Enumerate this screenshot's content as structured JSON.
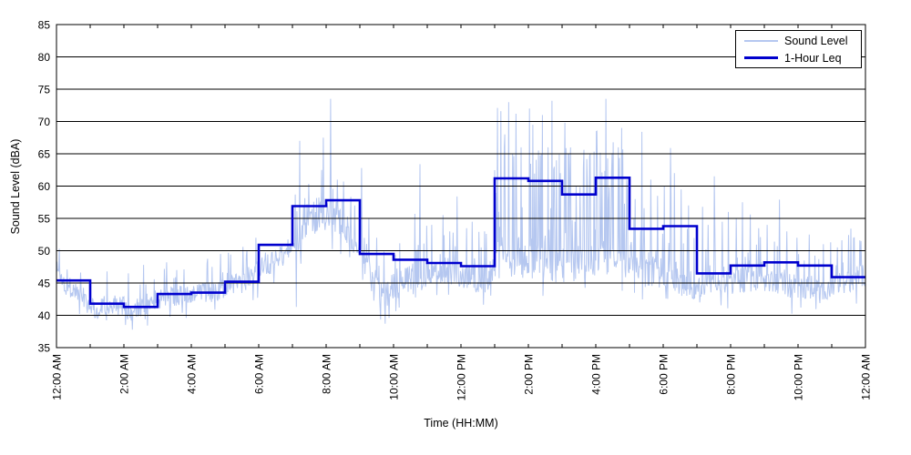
{
  "chart_data": {
    "type": "line",
    "title": "",
    "xlabel": "Time (HH:MM)",
    "ylabel": "Sound Level (dBA)",
    "ylim": [
      35,
      85
    ],
    "ytick_values": [
      35,
      40,
      45,
      50,
      55,
      60,
      65,
      70,
      75,
      80,
      85
    ],
    "x_hours": 24,
    "x_minor_tick_every_hours": 1,
    "x_label_every_hours": 2,
    "x_tick_labels": [
      "12:00 AM",
      "2:00 AM",
      "4:00 AM",
      "6:00 AM",
      "8:00 AM",
      "10:00 AM",
      "12:00 PM",
      "2:00 PM",
      "4:00 PM",
      "6:00 PM",
      "8:00 PM",
      "10:00 PM",
      "12:00 AM"
    ],
    "grid": "horizontal",
    "legend": {
      "position": "top-right",
      "items": [
        "Sound Level",
        "1-Hour Leq"
      ]
    },
    "colors": {
      "sound_level": "#b5c7f0",
      "leq": "#0000cd",
      "grid": "#000000",
      "frame": "#000000"
    },
    "series": [
      {
        "name": "Sound Level",
        "type": "noisy-line",
        "synthesis": {
          "seed": 1337,
          "minutes": 1440,
          "base_anchors": [
            [
              0,
              47.5
            ],
            [
              15,
              44.8
            ],
            [
              45,
              43.2
            ],
            [
              70,
              40.8
            ],
            [
              85,
              41.8
            ],
            [
              120,
              41.3
            ],
            [
              135,
              40.5
            ],
            [
              150,
              41.3
            ],
            [
              180,
              42.6
            ],
            [
              240,
              43.3
            ],
            [
              290,
              43.8
            ],
            [
              330,
              45.2
            ],
            [
              360,
              46.8
            ],
            [
              400,
              49.2
            ],
            [
              420,
              50.8
            ],
            [
              445,
              53.5
            ],
            [
              465,
              55.3
            ],
            [
              480,
              55.2
            ],
            [
              505,
              54.2
            ],
            [
              525,
              52.0
            ],
            [
              540,
              49.8
            ],
            [
              560,
              46.3
            ],
            [
              575,
              44.2
            ],
            [
              585,
              43.4
            ],
            [
              600,
              44.6
            ],
            [
              625,
              45.4
            ],
            [
              655,
              46.2
            ],
            [
              680,
              47.2
            ],
            [
              705,
              47.0
            ],
            [
              730,
              46.2
            ],
            [
              760,
              45.4
            ],
            [
              780,
              46.8
            ],
            [
              795,
              48.5
            ],
            [
              825,
              48.2
            ],
            [
              855,
              48.0
            ],
            [
              885,
              47.6
            ],
            [
              915,
              47.8
            ],
            [
              945,
              48.6
            ],
            [
              975,
              49.2
            ],
            [
              1000,
              48.4
            ],
            [
              1020,
              47.2
            ],
            [
              1050,
              46.6
            ],
            [
              1080,
              46.8
            ],
            [
              1105,
              45.8
            ],
            [
              1140,
              44.6
            ],
            [
              1170,
              44.9
            ],
            [
              1200,
              45.1
            ],
            [
              1230,
              45.6
            ],
            [
              1260,
              45.4
            ],
            [
              1290,
              44.9
            ],
            [
              1320,
              44.4
            ],
            [
              1350,
              44.3
            ],
            [
              1380,
              44.4
            ],
            [
              1410,
              45.2
            ],
            [
              1439,
              46.3
            ]
          ],
          "noise_segments": [
            [
              0,
              300,
              1.6,
              0.05,
              5.5
            ],
            [
              300,
              420,
              1.8,
              0.06,
              6.5
            ],
            [
              420,
              540,
              2.3,
              0.08,
              7.5
            ],
            [
              540,
              780,
              2.2,
              0.1,
              8.0
            ],
            [
              780,
              1020,
              2.8,
              0.26,
              20.0
            ],
            [
              1020,
              1140,
              2.4,
              0.15,
              13.0
            ],
            [
              1140,
              1440,
              1.9,
              0.1,
              8.5
            ]
          ],
          "major_spikes": [
            [
              5,
              50.3
            ],
            [
              128,
              46.5
            ],
            [
              155,
              47.8
            ],
            [
              196,
              48.2
            ],
            [
              214,
              47.0
            ],
            [
              268,
              48.0
            ],
            [
              292,
              49.5
            ],
            [
              355,
              52.0
            ],
            [
              433,
              67.0
            ],
            [
              446,
              57.2
            ],
            [
              452,
              56.0
            ],
            [
              472,
              62.5
            ],
            [
              475,
              67.5
            ],
            [
              488,
              73.5
            ],
            [
              500,
              61.0
            ],
            [
              511,
              60.7
            ],
            [
              531,
              57.0
            ],
            [
              543,
              62.8
            ],
            [
              556,
              55.0
            ],
            [
              570,
              52.0
            ],
            [
              638,
              55.7
            ],
            [
              647,
              63.4
            ],
            [
              668,
              54.0
            ],
            [
              688,
              55.5
            ],
            [
              700,
              53.0
            ],
            [
              713,
              58.4
            ],
            [
              740,
              54.5
            ],
            [
              762,
              53.0
            ],
            [
              785,
              72.1
            ],
            [
              791,
              71.6
            ],
            [
              798,
              68.0
            ],
            [
              805,
              73.0
            ],
            [
              812,
              65.0
            ],
            [
              818,
              71.2
            ],
            [
              827,
              66.0
            ],
            [
              842,
              72.0
            ],
            [
              848,
              69.5
            ],
            [
              858,
              65.5
            ],
            [
              865,
              71.0
            ],
            [
              875,
              66.0
            ],
            [
              882,
              73.2
            ],
            [
              890,
              64.0
            ],
            [
              897,
              62.0
            ],
            [
              905,
              69.8
            ],
            [
              912,
              65.0
            ],
            [
              925,
              60.0
            ],
            [
              938,
              63.0
            ],
            [
              950,
              65.0
            ],
            [
              963,
              61.0
            ],
            [
              978,
              73.5
            ],
            [
              988,
              62.0
            ],
            [
              1000,
              66.0
            ],
            [
              1006,
              69.0
            ],
            [
              1015,
              61.0
            ],
            [
              1030,
              58.0
            ],
            [
              1042,
              68.4
            ],
            [
              1058,
              61.0
            ],
            [
              1070,
              58.5
            ],
            [
              1082,
              60.0
            ],
            [
              1093,
              65.9
            ],
            [
              1100,
              62.0
            ],
            [
              1112,
              59.5
            ],
            [
              1125,
              57.0
            ],
            [
              1150,
              56.8
            ],
            [
              1160,
              54.0
            ],
            [
              1171,
              61.5
            ],
            [
              1185,
              54.5
            ],
            [
              1196,
              56.0
            ],
            [
              1210,
              55.0
            ],
            [
              1221,
              57.5
            ],
            [
              1235,
              55.6
            ],
            [
              1250,
              53.5
            ],
            [
              1265,
              54.0
            ],
            [
              1287,
              57.9
            ],
            [
              1300,
              53.0
            ],
            [
              1318,
              52.0
            ],
            [
              1340,
              52.5
            ],
            [
              1365,
              51.0
            ],
            [
              1390,
              50.5
            ],
            [
              1420,
              52.0
            ]
          ],
          "major_dips": [
            [
              55,
              40.4
            ],
            [
              70,
              39.8
            ],
            [
              100,
              40.3
            ],
            [
              133,
              39.2
            ],
            [
              158,
              39.4
            ],
            [
              427,
              41.3
            ],
            [
              585,
              38.7
            ],
            [
              592,
              39.6
            ],
            [
              610,
              41.2
            ],
            [
              1145,
              42.0
            ]
          ]
        }
      },
      {
        "name": "1-Hour Leq",
        "type": "step",
        "hourly_values": [
          45.4,
          41.8,
          41.3,
          43.3,
          43.5,
          45.2,
          50.9,
          56.9,
          57.8,
          49.5,
          48.6,
          48.1,
          47.6,
          61.2,
          60.8,
          58.7,
          61.3,
          53.4,
          53.8,
          46.5,
          47.7,
          48.2,
          47.7,
          45.9
        ]
      }
    ]
  }
}
